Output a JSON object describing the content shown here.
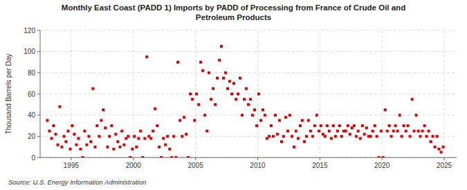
{
  "chart_data": {
    "type": "scatter",
    "title": "Monthly East Coast (PADD 1) Imports by PADD of Processing from France of Crude Oil and\nPetroleum Products",
    "y_label": "Thousand Barrels per Day",
    "annotations": [
      "Source: U.S. Energy Information Administration"
    ],
    "color": "#dd0000",
    "marker": "square",
    "grid": true,
    "xlim": [
      1992.5,
      2026.0
    ],
    "ylim": [
      0,
      120
    ],
    "xticks": [
      1995,
      2000,
      2005,
      2010,
      2015,
      2020,
      2025
    ],
    "yticks": [
      0,
      20,
      40,
      60,
      80,
      100,
      120
    ],
    "x": [
      1993.08,
      1993.25,
      1993.42,
      1993.58,
      1993.75,
      1993.92,
      1994.08,
      1994.25,
      1994.42,
      1994.58,
      1994.75,
      1994.92,
      1995.08,
      1995.25,
      1995.42,
      1995.58,
      1995.75,
      1995.92,
      1996.08,
      1996.25,
      1996.42,
      1996.58,
      1996.75,
      1996.92,
      1997.08,
      1997.25,
      1997.42,
      1997.58,
      1997.75,
      1997.92,
      1998.08,
      1998.25,
      1998.42,
      1998.58,
      1998.75,
      1998.92,
      1999.08,
      1999.25,
      1999.42,
      1999.58,
      1999.75,
      1999.92,
      2000.08,
      2000.25,
      2000.42,
      2000.58,
      2000.75,
      2000.92,
      2001.08,
      2001.25,
      2001.42,
      2001.58,
      2001.75,
      2001.92,
      2002.08,
      2002.25,
      2002.42,
      2002.58,
      2002.75,
      2002.92,
      2003.08,
      2003.25,
      2003.42,
      2003.58,
      2003.75,
      2003.92,
      2004.08,
      2004.25,
      2004.42,
      2004.58,
      2004.75,
      2004.92,
      2005.08,
      2005.25,
      2005.42,
      2005.58,
      2005.75,
      2005.92,
      2006.08,
      2006.25,
      2006.42,
      2006.58,
      2006.75,
      2006.92,
      2007.08,
      2007.25,
      2007.42,
      2007.58,
      2007.75,
      2007.92,
      2008.08,
      2008.25,
      2008.42,
      2008.58,
      2008.75,
      2008.92,
      2009.08,
      2009.25,
      2009.42,
      2009.58,
      2009.75,
      2009.92,
      2010.08,
      2010.25,
      2010.42,
      2010.58,
      2010.75,
      2010.92,
      2011.08,
      2011.25,
      2011.42,
      2011.58,
      2011.75,
      2011.92,
      2012.08,
      2012.25,
      2012.42,
      2012.58,
      2012.75,
      2012.92,
      2013.08,
      2013.25,
      2013.42,
      2013.58,
      2013.75,
      2013.92,
      2014.08,
      2014.25,
      2014.42,
      2014.58,
      2014.75,
      2014.92,
      2015.08,
      2015.25,
      2015.42,
      2015.58,
      2015.75,
      2015.92,
      2016.08,
      2016.25,
      2016.42,
      2016.58,
      2016.75,
      2016.92,
      2017.08,
      2017.25,
      2017.42,
      2017.58,
      2017.75,
      2017.92,
      2018.08,
      2018.25,
      2018.42,
      2018.58,
      2018.75,
      2018.92,
      2019.08,
      2019.25,
      2019.42,
      2019.58,
      2019.75,
      2019.92,
      2020.08,
      2020.25,
      2020.42,
      2020.58,
      2020.75,
      2020.92,
      2021.08,
      2021.25,
      2021.42,
      2021.58,
      2021.75,
      2021.92,
      2022.08,
      2022.25,
      2022.42,
      2022.58,
      2022.75,
      2022.92,
      2023.08,
      2023.25,
      2023.42,
      2023.58,
      2023.75,
      2023.92,
      2024.08,
      2024.25,
      2024.42,
      2024.58,
      2024.75,
      2024.92
    ],
    "values": [
      35,
      25,
      18,
      30,
      22,
      12,
      48,
      10,
      20,
      15,
      25,
      8,
      30,
      22,
      12,
      18,
      8,
      0,
      25,
      12,
      20,
      15,
      65,
      10,
      30,
      20,
      35,
      45,
      28,
      10,
      20,
      30,
      8,
      22,
      15,
      10,
      25,
      12,
      18,
      20,
      0,
      8,
      20,
      10,
      18,
      25,
      0,
      18,
      95,
      20,
      18,
      25,
      46,
      30,
      10,
      0,
      18,
      12,
      20,
      8,
      0,
      20,
      0,
      90,
      35,
      20,
      38,
      22,
      0,
      60,
      55,
      35,
      60,
      50,
      90,
      82,
      40,
      25,
      80,
      55,
      65,
      50,
      75,
      92,
      105,
      75,
      80,
      65,
      72,
      60,
      70,
      55,
      60,
      75,
      40,
      55,
      65,
      50,
      55,
      40,
      45,
      30,
      60,
      35,
      45,
      40,
      18,
      20,
      30,
      20,
      40,
      22,
      35,
      15,
      20,
      38,
      25,
      40,
      20,
      10,
      25,
      18,
      30,
      35,
      15,
      20,
      35,
      25,
      20,
      30,
      40,
      25,
      30,
      22,
      20,
      30,
      25,
      18,
      30,
      20,
      25,
      30,
      20,
      25,
      25,
      30,
      22,
      28,
      30,
      20,
      25,
      18,
      30,
      22,
      28,
      20,
      20,
      25,
      30,
      20,
      0,
      25,
      0,
      45,
      25,
      30,
      20,
      25,
      30,
      25,
      40,
      20,
      30,
      25,
      30,
      20,
      55,
      25,
      40,
      25,
      20,
      25,
      30,
      20,
      25,
      15,
      20,
      10,
      20,
      8,
      5,
      10
    ]
  }
}
